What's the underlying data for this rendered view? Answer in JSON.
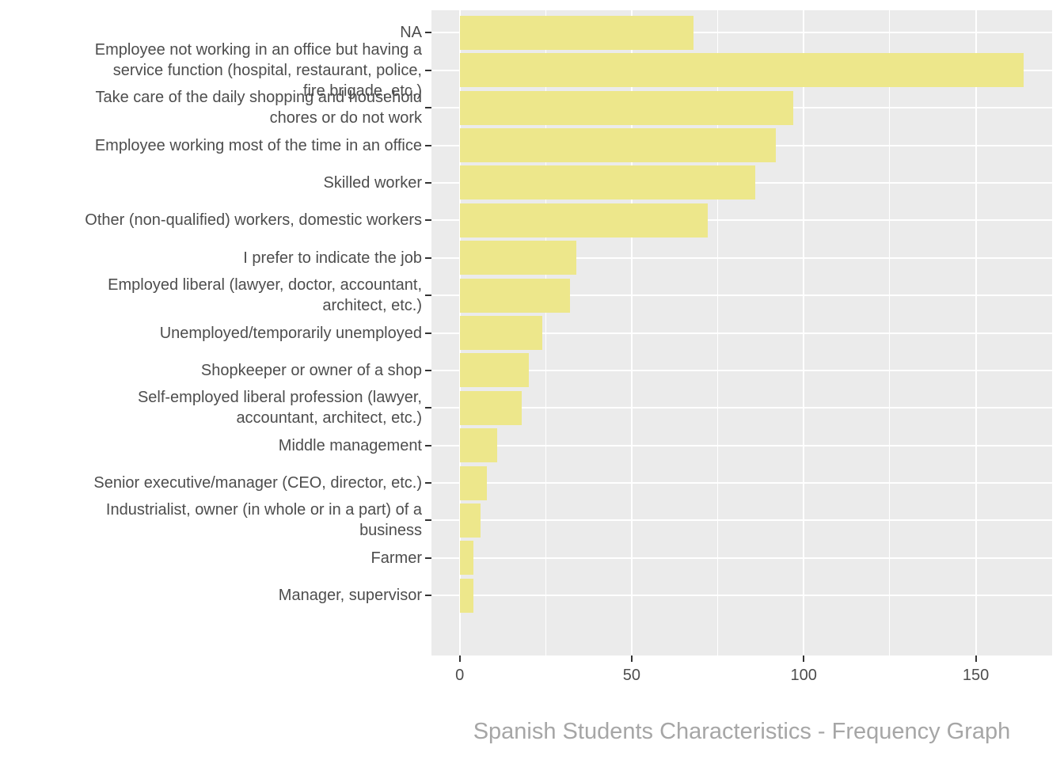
{
  "chart_data": {
    "type": "bar",
    "orientation": "horizontal",
    "title": "Spanish Students Characteristics - Frequency Graph",
    "xlabel": "",
    "ylabel": "",
    "categories": [
      "NA",
      "Employee not working in an office but having a service function (hospital, restaurant, police, fire brigade, etc.)",
      "Take care of the daily shopping and household chores or do not work",
      "Employee working most of the time in an office",
      "Skilled worker",
      "Other (non-qualified) workers, domestic workers",
      "I prefer to indicate the job",
      "Employed liberal (lawyer, doctor, accountant, architect, etc.)",
      "Unemployed/temporarily unemployed",
      "Shopkeeper or owner of a shop",
      "Self-employed liberal profession (lawyer, accountant, architect, etc.)",
      "Middle management",
      "Senior executive/manager (CEO, director, etc.)",
      "Industrialist, owner (in whole or in a part) of a business",
      "Farmer",
      "Manager, supervisor"
    ],
    "category_display_lines": [
      [
        "NA"
      ],
      [
        "Employee not working in an office but having a",
        "service function (hospital, restaurant, police,",
        "fire brigade, etc.)"
      ],
      [
        "Take care of the daily shopping and household",
        "chores or do not work"
      ],
      [
        "Employee working most of the time in an office"
      ],
      [
        "Skilled worker"
      ],
      [
        "Other (non-qualified) workers, domestic workers"
      ],
      [
        "I prefer to indicate the job"
      ],
      [
        "Employed liberal (lawyer, doctor, accountant,",
        "architect, etc.)"
      ],
      [
        "Unemployed/temporarily unemployed"
      ],
      [
        "Shopkeeper or owner of a shop"
      ],
      [
        "Self-employed liberal profession (lawyer,",
        "accountant, architect, etc.)"
      ],
      [
        "Middle management"
      ],
      [
        "Senior executive/manager (CEO, director, etc.)"
      ],
      [
        "Industrialist, owner (in whole or in a part) of a",
        "business"
      ],
      [
        "Farmer"
      ],
      [
        "Manager, supervisor"
      ]
    ],
    "values": [
      68,
      164,
      97,
      92,
      86,
      72,
      34,
      32,
      24,
      20,
      18,
      11,
      8,
      6,
      4,
      4
    ],
    "x_tick_labels": [
      "0",
      "50",
      "100",
      "150"
    ],
    "x_ticks": [
      0,
      50,
      100,
      150
    ],
    "x_minor_ticks": [
      25,
      75,
      125
    ],
    "xlim": [
      -8.2,
      172.2
    ],
    "grid": true,
    "legend": "none",
    "colors": {
      "bar_fill": "#EDE78B",
      "panel_background": "#EBEBEB",
      "gridline": "#FFFFFF",
      "axis_tick": "#333333",
      "axis_text": "#4D4D4D",
      "title_text": "#A6A6A6",
      "page_background": "#FFFFFF"
    }
  }
}
